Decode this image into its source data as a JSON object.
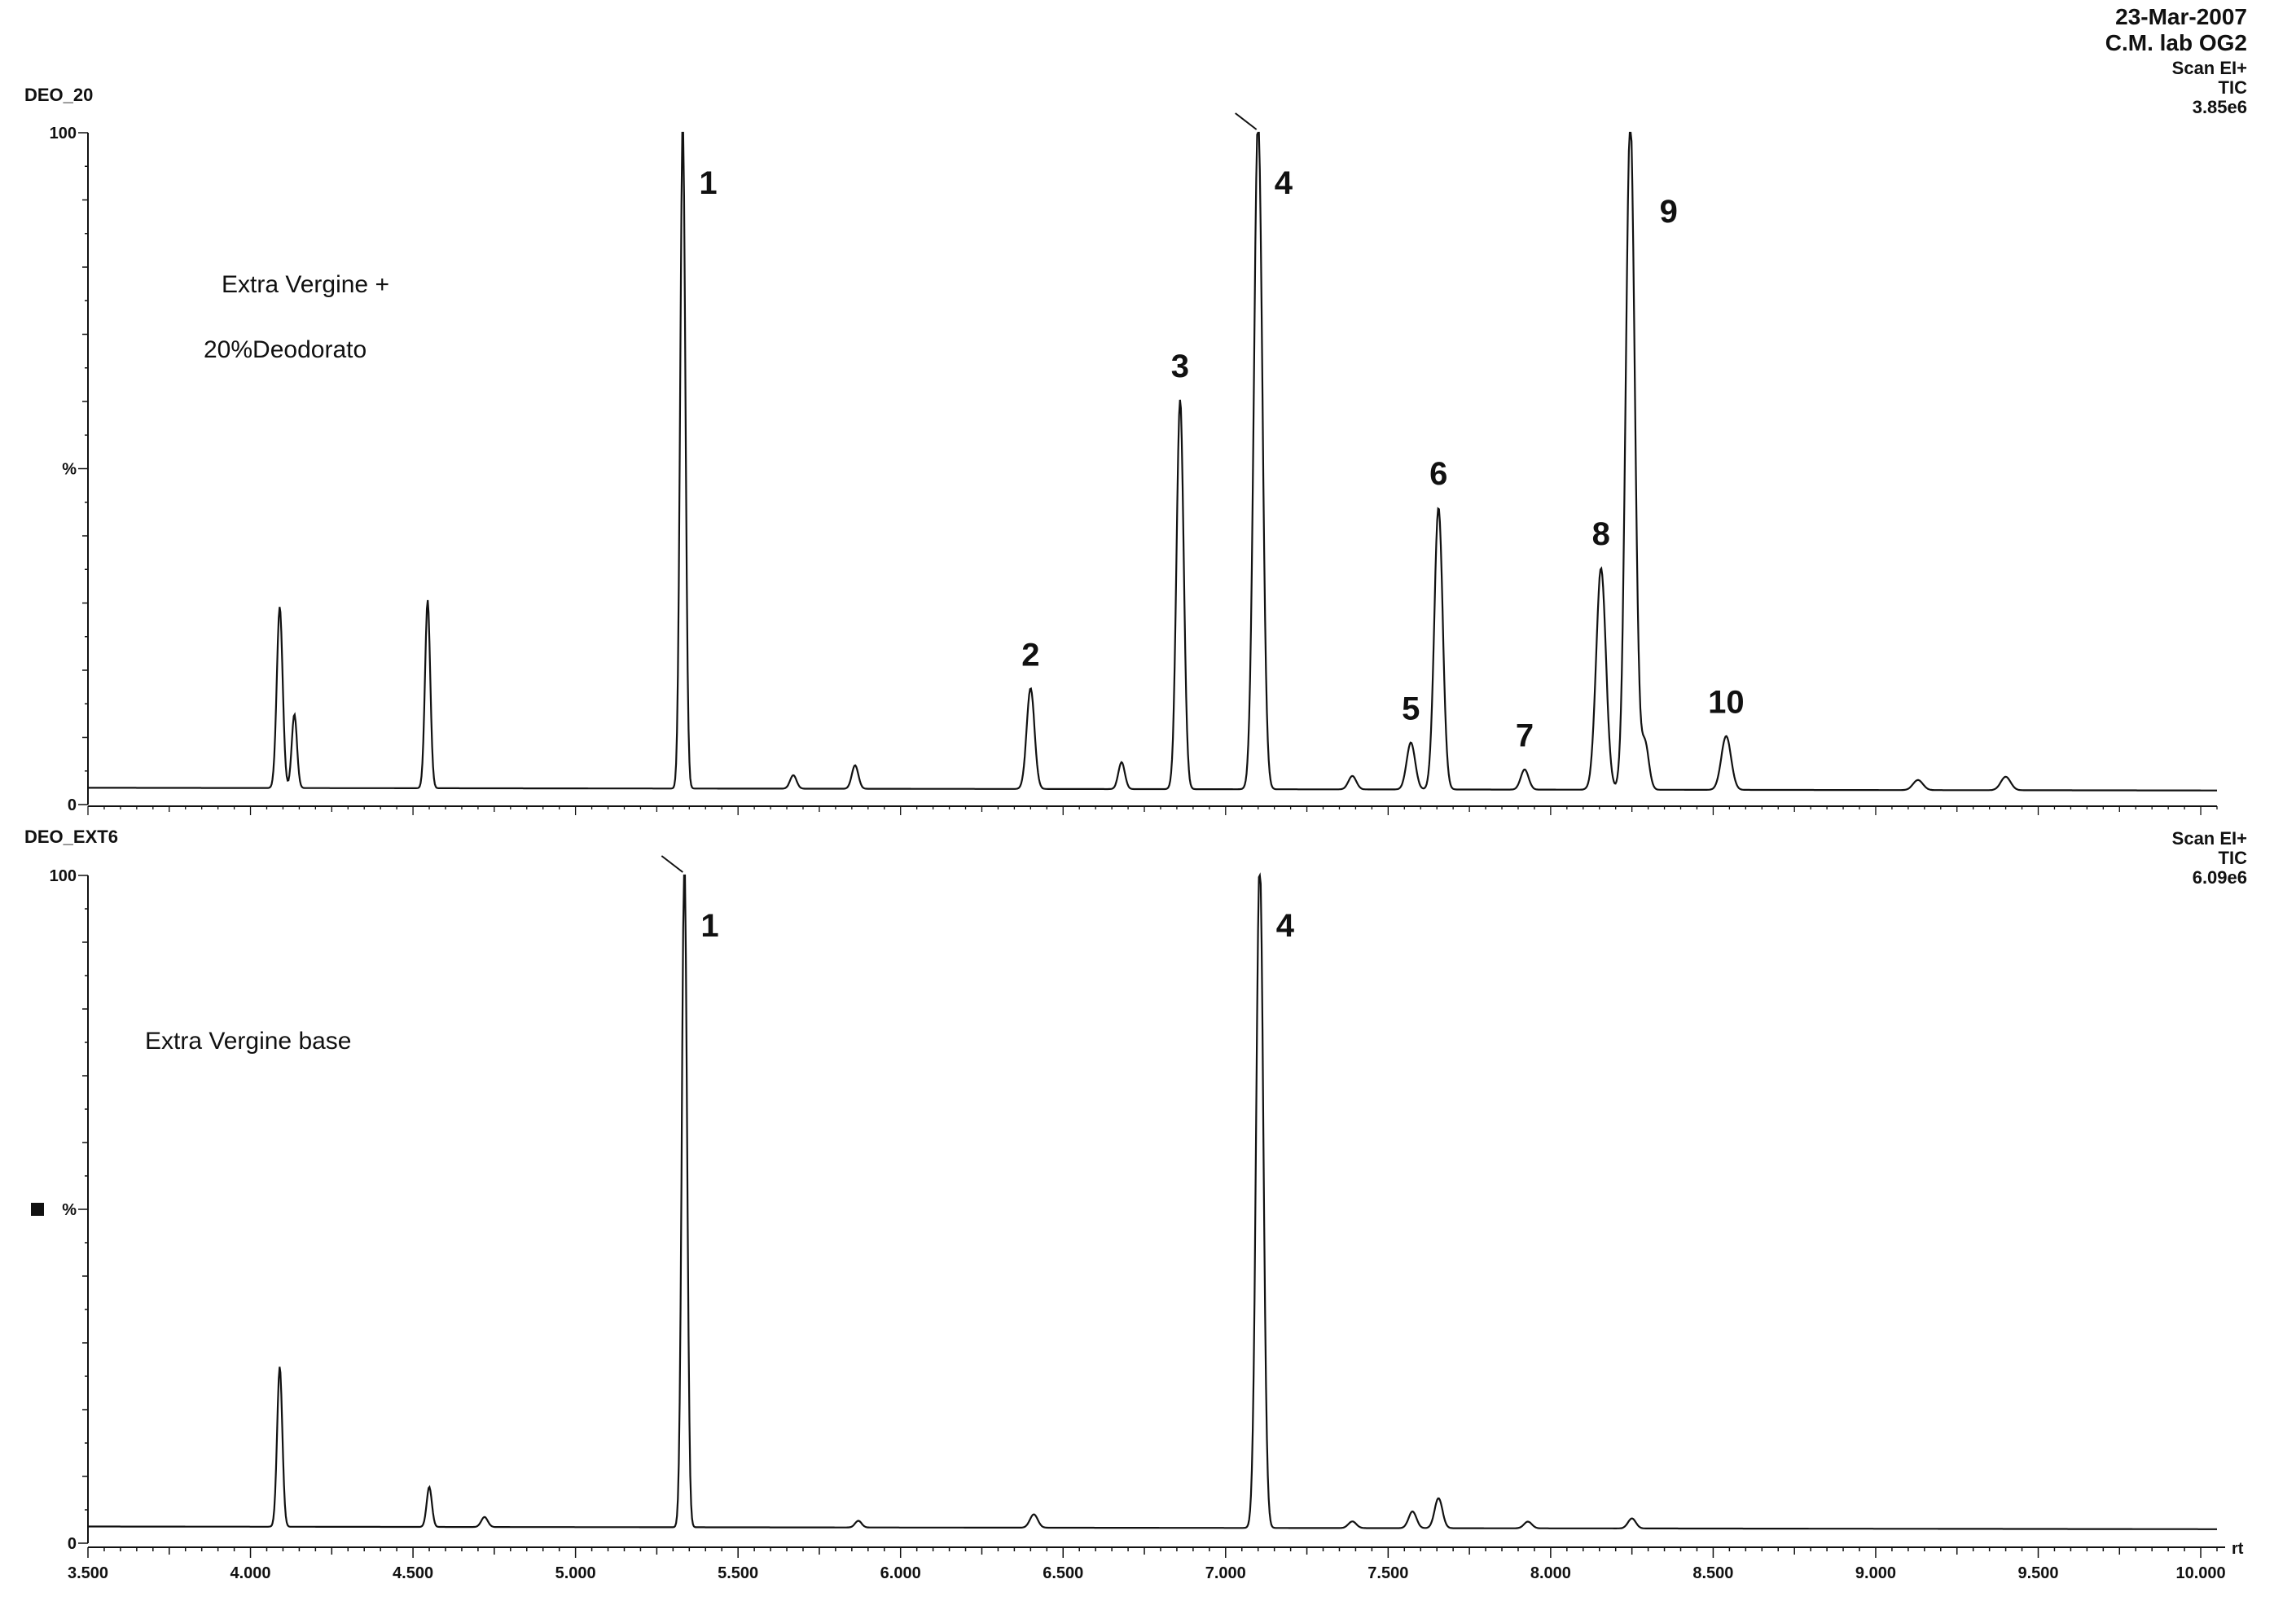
{
  "header": {
    "date": "23-Mar-2007",
    "lab": "C.M. lab OG2"
  },
  "panels": [
    {
      "id": "DEO_20",
      "scan": "Scan EI+",
      "tic": "TIC",
      "intensity": "3.85e6",
      "note_lines": [
        "Extra Vergine +",
        "20%Deodorato"
      ]
    },
    {
      "id": "DEO_EXT6",
      "scan": "Scan EI+",
      "tic": "TIC",
      "intensity": "6.09e6",
      "note_lines": [
        "Extra Vergine base"
      ]
    }
  ],
  "chart_data": [
    {
      "type": "line",
      "panel": "DEO_20",
      "xlim": [
        3.5,
        10.05
      ],
      "ylim": [
        0,
        100
      ],
      "ytick_labels": [
        "100",
        "%",
        "0"
      ],
      "baseline": 2.5,
      "peaks": [
        {
          "rt": 4.09,
          "h": 27,
          "w": 0.009
        },
        {
          "rt": 4.135,
          "h": 11,
          "w": 0.008
        },
        {
          "rt": 4.545,
          "h": 28,
          "w": 0.008
        },
        {
          "rt": 5.33,
          "h": 100,
          "w": 0.008,
          "label": "1"
        },
        {
          "rt": 5.67,
          "h": 2,
          "w": 0.01
        },
        {
          "rt": 5.86,
          "h": 3.5,
          "w": 0.01
        },
        {
          "rt": 6.4,
          "h": 15,
          "w": 0.012,
          "label": "2"
        },
        {
          "rt": 6.68,
          "h": 4,
          "w": 0.01
        },
        {
          "rt": 6.86,
          "h": 58,
          "w": 0.011,
          "label": "3"
        },
        {
          "rt": 7.1,
          "h": 100,
          "w": 0.013,
          "label": "4"
        },
        {
          "rt": 7.39,
          "h": 2,
          "w": 0.012
        },
        {
          "rt": 7.57,
          "h": 7,
          "w": 0.013,
          "label": "5"
        },
        {
          "rt": 7.655,
          "h": 42,
          "w": 0.013,
          "label": "6"
        },
        {
          "rt": 7.92,
          "h": 3,
          "w": 0.012,
          "label": "7"
        },
        {
          "rt": 8.155,
          "h": 33,
          "w": 0.015,
          "label": "8"
        },
        {
          "rt": 8.245,
          "h": 100,
          "w": 0.014,
          "label": "9"
        },
        {
          "rt": 8.29,
          "h": 7,
          "w": 0.012
        },
        {
          "rt": 8.54,
          "h": 8,
          "w": 0.015,
          "label": "10"
        },
        {
          "rt": 9.13,
          "h": 1.5,
          "w": 0.015
        },
        {
          "rt": 9.4,
          "h": 2,
          "w": 0.015
        }
      ]
    },
    {
      "type": "line",
      "panel": "DEO_EXT6",
      "xlim": [
        3.5,
        10.05
      ],
      "ylim": [
        0,
        100
      ],
      "ytick_labels": [
        "100",
        "%",
        "0"
      ],
      "baseline": 2.5,
      "peaks": [
        {
          "rt": 4.09,
          "h": 24,
          "w": 0.008
        },
        {
          "rt": 4.55,
          "h": 6,
          "w": 0.008
        },
        {
          "rt": 4.72,
          "h": 1.5,
          "w": 0.01
        },
        {
          "rt": 5.335,
          "h": 100,
          "w": 0.008,
          "label": "1"
        },
        {
          "rt": 5.87,
          "h": 1,
          "w": 0.01
        },
        {
          "rt": 6.41,
          "h": 2,
          "w": 0.012
        },
        {
          "rt": 7.105,
          "h": 100,
          "w": 0.011,
          "label": "4"
        },
        {
          "rt": 7.39,
          "h": 1,
          "w": 0.012
        },
        {
          "rt": 7.575,
          "h": 2.5,
          "w": 0.012
        },
        {
          "rt": 7.655,
          "h": 4.5,
          "w": 0.012
        },
        {
          "rt": 7.93,
          "h": 1,
          "w": 0.012
        },
        {
          "rt": 8.25,
          "h": 1.5,
          "w": 0.012
        }
      ]
    }
  ],
  "x_axis": {
    "tick_labels": [
      "3.500",
      "4.000",
      "4.500",
      "5.000",
      "5.500",
      "6.000",
      "6.500",
      "7.000",
      "7.500",
      "8.000",
      "8.500",
      "9.000",
      "9.500",
      "10.000"
    ],
    "unit_label": "rt"
  }
}
